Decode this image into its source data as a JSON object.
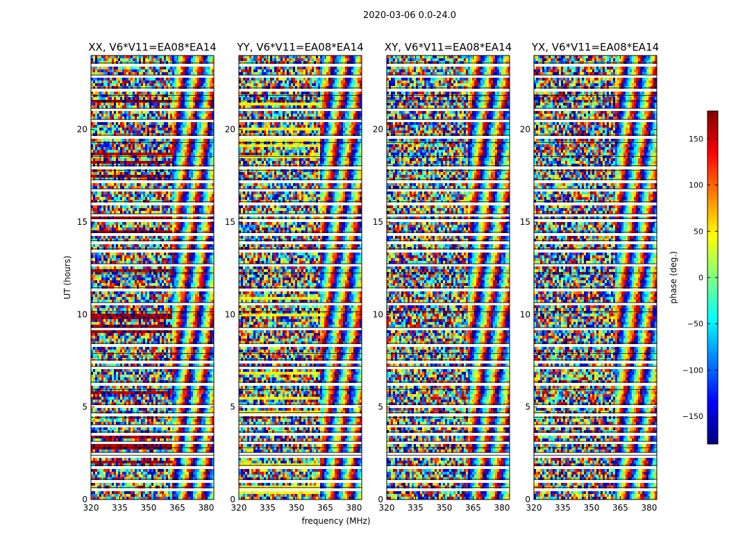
{
  "figure": {
    "suptitle": "2020-03-06 0.0-24.0",
    "xlabel": "frequency (MHz)",
    "ylabel": "UT (hours)",
    "colorbar_label": "phase (deg.)"
  },
  "chart_data": {
    "type": "heatmap",
    "title": "2020-03-06 0.0-24.0",
    "xlabel": "frequency (MHz)",
    "ylabel": "UT (hours)",
    "xlim": [
      320,
      384
    ],
    "ylim": [
      0,
      24
    ],
    "x_ticks": [
      "320",
      "335",
      "350",
      "365",
      "380"
    ],
    "y_ticks": [
      "0",
      "5",
      "10",
      "15",
      "20"
    ],
    "x_tick_values": [
      320,
      335,
      350,
      365,
      380
    ],
    "y_tick_values": [
      0,
      5,
      10,
      15,
      20
    ],
    "panels": [
      {
        "title": "XX, V6*V11=EA08*EA14",
        "color_bias": 170
      },
      {
        "title": "YY, V6*V11=EA08*EA14",
        "color_bias": 45
      },
      {
        "title": "XY, V6*V11=EA08*EA14",
        "color_bias": null
      },
      {
        "title": "YX, V6*V11=EA08*EA14",
        "color_bias": null
      }
    ],
    "colorbar": {
      "label": "phase (deg.)",
      "range": [
        -180,
        180
      ],
      "ticks": [
        "150",
        "100",
        "50",
        "0",
        "−50",
        "−100",
        "−150"
      ],
      "tick_values": [
        150,
        100,
        50,
        0,
        -50,
        -100,
        -150
      ],
      "colormap": "jet"
    },
    "flagged_gap_hours": [
      0.55,
      1.0,
      1.75,
      2.3,
      2.45,
      2.7,
      3.05,
      3.55,
      3.95,
      4.35,
      4.6,
      5.05,
      5.85,
      6.25,
      7.1,
      7.45,
      7.8,
      8.35,
      9.2,
      10.05,
      10.55,
      11.35,
      12.15,
      12.65,
      13.45,
      13.9,
      14.35,
      15.1,
      15.35,
      16.0,
      16.7,
      17.2,
      17.7,
      17.95,
      18.45,
      19.2,
      19.6,
      20.45,
      21.05,
      21.45,
      21.75,
      22.15,
      22.85,
      23.5
    ]
  }
}
